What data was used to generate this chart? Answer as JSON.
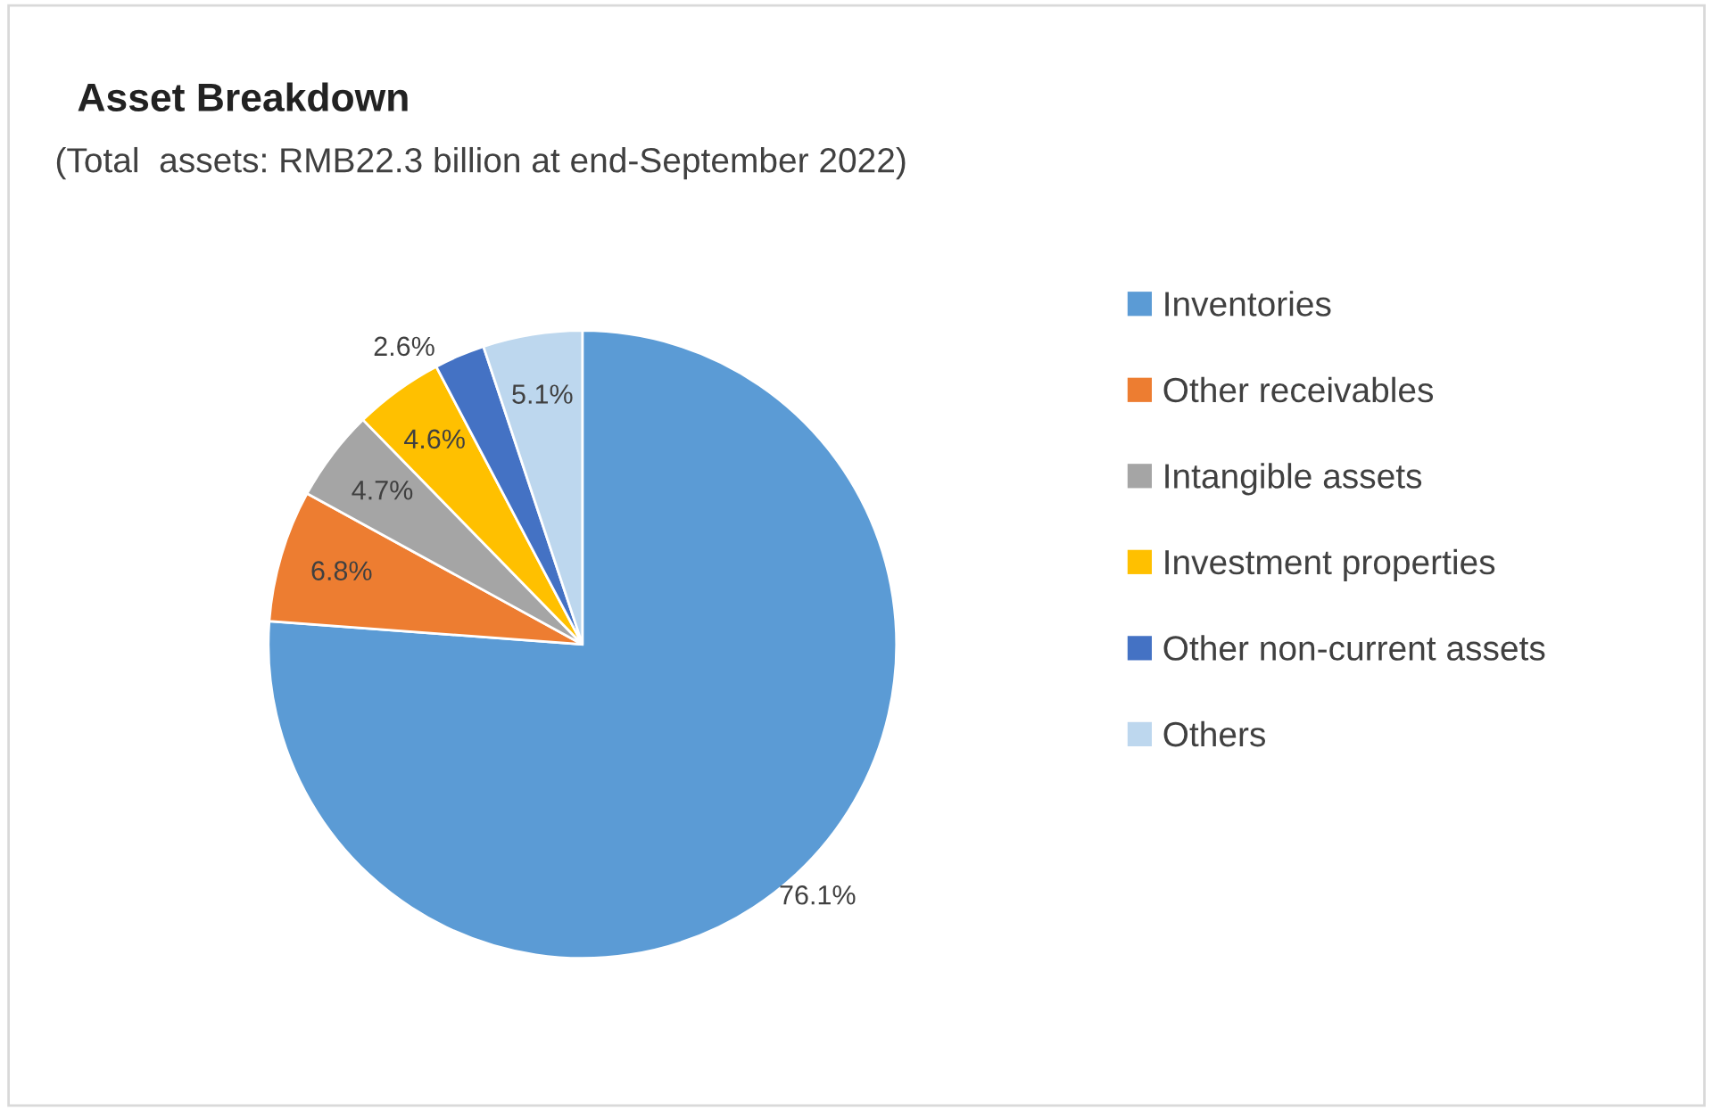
{
  "chart_data": {
    "type": "pie",
    "title": "Asset Breakdown",
    "subtitle": "(Total  assets: RMB22.3 billion at end-September 2022)",
    "categories": [
      "Inventories",
      "Other receivables",
      "Intangible assets",
      "Investment properties",
      "Other non-current assets",
      "Others"
    ],
    "values": [
      76.1,
      6.8,
      4.7,
      4.6,
      2.6,
      5.1
    ],
    "colors": [
      "#5b9bd5",
      "#ed7d31",
      "#a5a5a5",
      "#ffc000",
      "#4472c4",
      "#bdd7ee"
    ],
    "value_labels": [
      "76.1%",
      "6.8%",
      "4.7%",
      "4.6%",
      "2.6%",
      "5.1%"
    ],
    "legend": "right"
  }
}
